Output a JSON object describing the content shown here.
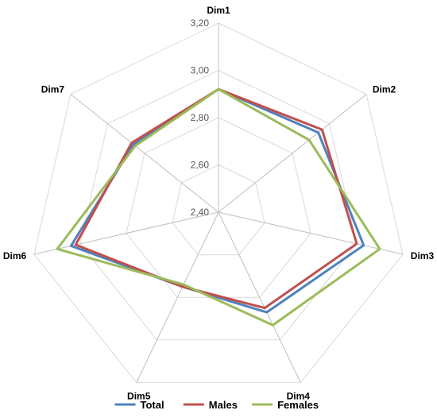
{
  "chart_data": {
    "type": "radar",
    "axes": [
      "Dim1",
      "Dim2",
      "Dim3",
      "Dim4",
      "Dim5",
      "Dim6",
      "Dim7"
    ],
    "rlim": [
      2.4,
      3.2
    ],
    "ticks": [
      2.4,
      2.6,
      2.8,
      3.0,
      3.2
    ],
    "tick_labels": [
      "2,40",
      "2,60",
      "2,80",
      "3,00",
      "3,20"
    ],
    "grid": true,
    "legend_position": "bottom",
    "series": [
      {
        "name": "Total",
        "color": "#4F81BD",
        "values": [
          2.92,
          2.94,
          3.03,
          2.87,
          2.75,
          3.04,
          2.86
        ]
      },
      {
        "name": "Males",
        "color": "#C0504D",
        "values": [
          2.92,
          2.96,
          3.0,
          2.85,
          2.75,
          3.02,
          2.87
        ]
      },
      {
        "name": "Females",
        "color": "#9BBB59",
        "values": [
          2.92,
          2.89,
          3.1,
          2.93,
          2.74,
          3.1,
          2.85
        ]
      }
    ]
  }
}
